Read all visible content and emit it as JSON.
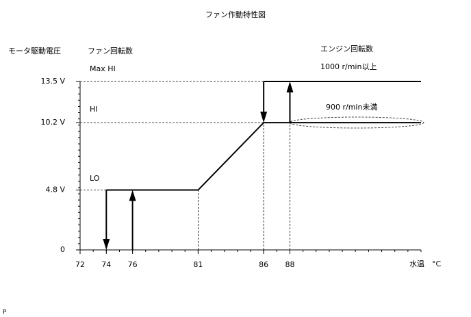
{
  "chart_data": {
    "type": "line",
    "title": "ファン作動特性図",
    "y_label": "モータ駆動電圧",
    "series_label": "ファン回転数",
    "engine_label": "エンジン回転数",
    "x_label": "水温　°C",
    "annotations": [
      "Max HI",
      "HI",
      "LO",
      "1000 r/min以上",
      "900 r/min未満"
    ],
    "footer": "P",
    "xlim": [
      72,
      98
    ],
    "ylim": [
      0,
      13.5
    ],
    "xticks": [
      72,
      74,
      76,
      81,
      86,
      88
    ],
    "yticks": [
      {
        "value": 0,
        "label": "0"
      },
      {
        "value": 4.8,
        "label": "4.8 V"
      },
      {
        "value": 10.2,
        "label": "10.2 V"
      },
      {
        "value": 13.5,
        "label": "13.5 V"
      }
    ],
    "color": "#000000",
    "series": [
      {
        "x": [
          74,
          81,
          86,
          88,
          98
        ],
        "values": [
          4.8,
          4.8,
          10.2,
          10.2,
          10.2
        ]
      },
      {
        "x": [
          86,
          98
        ],
        "values": [
          13.5,
          13.5
        ]
      }
    ],
    "arrows": [
      {
        "x": 74,
        "y": [
          4.8,
          0
        ]
      },
      {
        "x": 76,
        "y": [
          0,
          4.8
        ]
      },
      {
        "x": 86,
        "y": [
          13.5,
          10.2
        ]
      },
      {
        "x": 88,
        "y": [
          10.2,
          13.5
        ]
      }
    ]
  }
}
